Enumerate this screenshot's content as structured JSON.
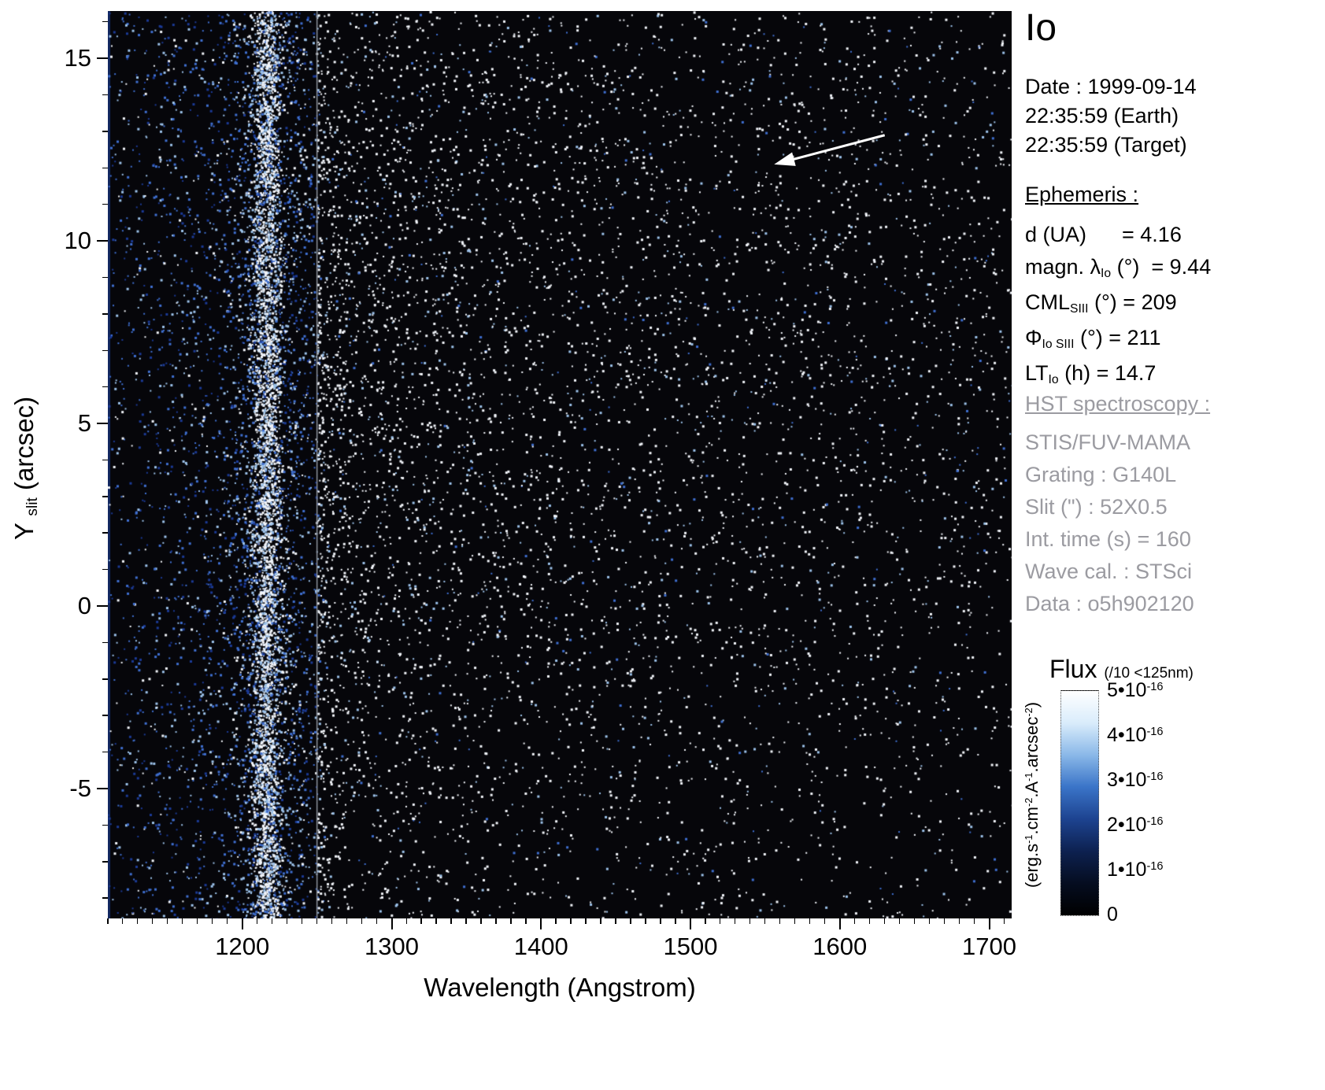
{
  "title": "Io",
  "header": {
    "dates": [
      "Date : 1999-09-14",
      "22:35:59 (Earth)",
      "22:35:59 (Target)"
    ]
  },
  "ephemeris": {
    "heading": "Ephemeris :",
    "lines": [
      "d (UA)      = 4.16",
      "magn. λ~Io~ (°)  = 9.44",
      "CML~SIII~ (°) = 209",
      "Φ~Io SIII~ (°) = 211",
      "LT~Io~ (h) = 14.7"
    ]
  },
  "hst": {
    "heading": "HST spectroscopy :",
    "lines": [
      "STIS/FUV-MAMA",
      "Grating : G140L",
      "Slit (\") : 52X0.5",
      "Int. time (s) = 160",
      "Wave cal. : STSci",
      "Data : o5h902120"
    ]
  },
  "colorbar": {
    "title": "Flux",
    "title_note": "(/10 <125nm)",
    "unit_label": "(erg.s^-1^.cm^-2^.A^-1^.arcsec^-2^)",
    "tick_labels": [
      "5•10^-16^",
      "4•10^-16^",
      "3•10^-16^",
      "2•10^-16^",
      "1•10^-16^",
      "0"
    ],
    "gradient_stops_bottom_to_top": [
      "#000000",
      "#050d20",
      "#0d2150",
      "#1d4390",
      "#3a74c8",
      "#8ab8e8",
      "#d9ecfb",
      "#ffffff"
    ]
  },
  "chart_data": {
    "type": "heatmap",
    "title": "Io",
    "subtitle": "HST STIS/FUV-MAMA 2D spectral image of Io, photon-count speckle",
    "xlabel": "Wavelength (Angstrom)",
    "ylabel": "Y ~slit~ (arcsec)",
    "x_range": [
      1110,
      1715
    ],
    "y_range": [
      -8.55,
      16.3
    ],
    "x_major_ticks": [
      1200,
      1300,
      1400,
      1500,
      1600,
      1700
    ],
    "x_minor_step": 10,
    "y_major_ticks": [
      -5,
      0,
      5,
      10,
      15
    ],
    "y_minor_step": 1,
    "flux_scale": {
      "min": 0,
      "max": 5e-16,
      "units": "erg.s-1.cm-2.A-1.arcsec-2",
      "note": "values below 125nm divided by 10"
    },
    "features": {
      "background_color": "#06060a",
      "lyman_alpha_band": {
        "center_wavelength": 1216,
        "core_sigma": 5,
        "halo_sigma": 14
      },
      "divider_line_wavelength": 1250,
      "divider_line_color": "#8d939c",
      "scatter_colors": {
        "bright": "#f2f5fa",
        "light_blue": "#9cc2ea",
        "mid_blue": "#3f6fd0",
        "dark_blue": "#1b3a96"
      },
      "densities": {
        "left_blue_points": 3000,
        "band_core_points": 3600,
        "band_halo_points": 1700,
        "right_points": 6000
      },
      "seed": 42
    },
    "annotations": [
      {
        "type": "arrow",
        "color": "#ffffff",
        "from_wavelength": 1630,
        "from_y": 12.9,
        "to_wavelength": 1556,
        "to_y": 12.1
      }
    ]
  }
}
